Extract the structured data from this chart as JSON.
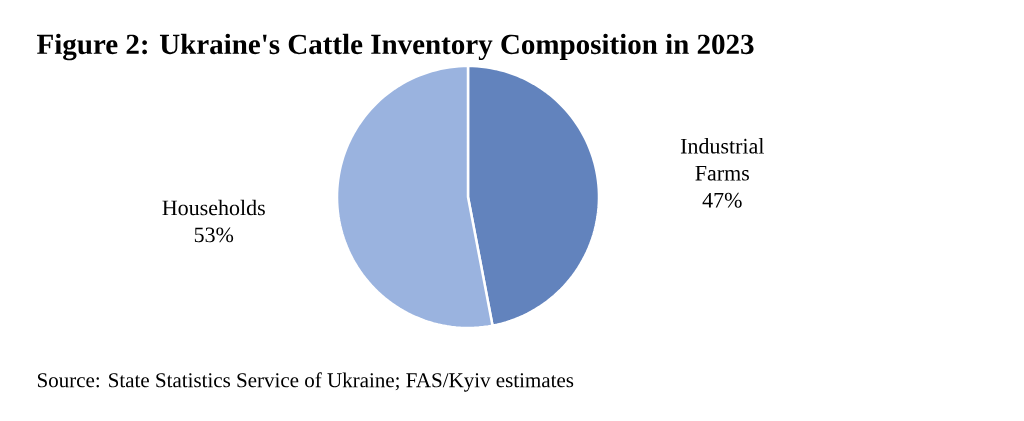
{
  "chart_data": {
    "type": "pie",
    "title": "Figure 2: Ukraine's Cattle Inventory Composition in 2023",
    "categories": [
      "Industrial Farms",
      "Households"
    ],
    "values": [
      47,
      53
    ],
    "value_labels": [
      "47%",
      "53%"
    ],
    "colors": [
      "#6283bd",
      "#9ab3df"
    ],
    "annotations": [
      "Source: State Statistics Service of Ukraine; FAS/Kyiv estimates"
    ]
  }
}
